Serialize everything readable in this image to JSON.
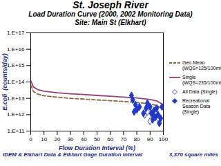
{
  "chart_data": {
    "type": "line",
    "title": "St. Joseph River",
    "subtitle": [
      "Load Duration Curve  (2000, 2002 Monitoring Data)",
      "Site: Main St (Elkhart)"
    ],
    "caption": [
      "IDEM & Elkhart Data & Elkhart Gage Duration Interval",
      "3,370 square miles"
    ],
    "x_label": "Flow Duration Interval (%)",
    "y_label": "E.coli  (counts/day)",
    "log": "y",
    "grid": false,
    "legend": "right",
    "xlim": [
      0,
      100
    ],
    "xticks": [
      0,
      10,
      20,
      30,
      40,
      50,
      60,
      70,
      80,
      90,
      100
    ],
    "ylim": [
      100000000000.0,
      1e+17
    ],
    "yticks": [
      {
        "value": 100000000000.0,
        "label": "1.E+11"
      },
      {
        "value": 1000000000000.0,
        "label": "1.E+12"
      },
      {
        "value": 10000000000000.0,
        "label": "1.E+13"
      },
      {
        "value": 100000000000000.0,
        "label": "1.E+14"
      },
      {
        "value": 1000000000000000.0,
        "label": "1.E+15"
      },
      {
        "value": 1e+16,
        "label": "1.E+16"
      },
      {
        "value": 1e+17,
        "label": "1.E+17"
      }
    ],
    "series": [
      {
        "name": "Geo.Mean (WQS=125/100ml)",
        "type": "line",
        "line_style": "dashed",
        "color": "#8c6a3c",
        "x": [
          0,
          2,
          5,
          10,
          20,
          30,
          40,
          50,
          60,
          70,
          80,
          90,
          95,
          100
        ],
        "values": [
          64000000000000.0,
          26500000000000.0,
          18500000000000.0,
          14300000000000.0,
          11700000000000.0,
          10000000000000.0,
          9000000000000.0,
          8000000000000.0,
          7200000000000.0,
          6400000000000.0,
          5600000000000.0,
          4500000000000.0,
          3700000000000.0,
          2100000000000.0
        ]
      },
      {
        "name": "Single (WQS=235/100ml)",
        "type": "line",
        "line_style": "solid",
        "color": "#9b3f7a",
        "x": [
          0,
          2,
          5,
          10,
          20,
          30,
          40,
          50,
          60,
          70,
          80,
          90,
          95,
          100
        ],
        "values": [
          120000000000000.0,
          50000000000000.0,
          35000000000000.0,
          27000000000000.0,
          22000000000000.0,
          19000000000000.0,
          17000000000000.0,
          15000000000000.0,
          13500000000000.0,
          12000000000000.0,
          10500000000000.0,
          8500000000000.0,
          7000000000000.0,
          4000000000000.0
        ]
      },
      {
        "name": "All Data (Single)",
        "type": "scatter",
        "marker": "diamond-open",
        "color": "#3a4fc0",
        "x": [
          86,
          88,
          90,
          94,
          96
        ],
        "values": [
          1000000000000.0,
          1500000000000.0,
          400000000000.0,
          1200000000000.0,
          600000000000.0
        ]
      },
      {
        "name": "Recreational Season Data (Single)",
        "type": "scatter",
        "marker": "diamond",
        "color": "#2238c8",
        "x": [
          76,
          77,
          79,
          80,
          78,
          82,
          85,
          87,
          88,
          90,
          91,
          92,
          93,
          95,
          96,
          97,
          98,
          92,
          94,
          99
        ],
        "values": [
          15000000000000.0,
          8000000000000.0,
          4000000000000.0,
          2000000000000.0,
          1500000000000.0,
          3000000000000.0,
          1200000000000.0,
          2500000000000.0,
          5000000000000.0,
          3000000000000.0,
          1200000000000.0,
          500000000000.0,
          1800000000000.0,
          2500000000000.0,
          1000000000000.0,
          300000000000.0,
          600000000000.0,
          1000000000000.0,
          700000000000.0,
          3000000000000.0
        ]
      }
    ]
  }
}
